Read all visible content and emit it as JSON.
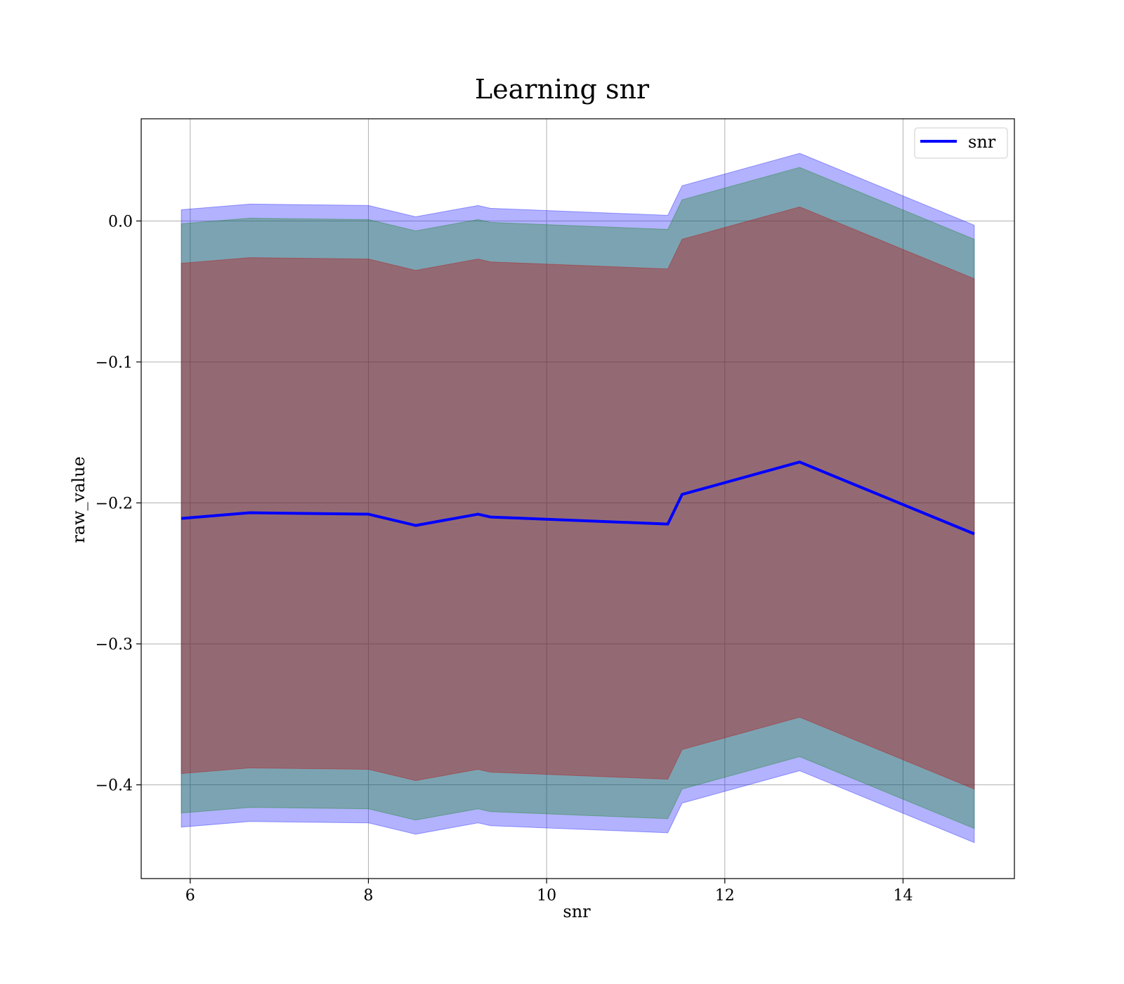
{
  "chart_data": {
    "type": "line",
    "title": "Learning snr",
    "xlabel": "snr",
    "ylabel": "raw_value",
    "xlim": [
      5.45,
      15.25
    ],
    "ylim": [
      -0.4665,
      0.0725
    ],
    "xticks": [
      6,
      8,
      10,
      12,
      14
    ],
    "xtick_labels": [
      "6",
      "8",
      "10",
      "12",
      "14"
    ],
    "yticks": [
      0.0,
      -0.1,
      -0.2,
      -0.3,
      -0.4
    ],
    "ytick_labels": [
      "0.0",
      "−0.1",
      "−0.2",
      "−0.3",
      "−0.4"
    ],
    "grid": true,
    "legend_position": "top-right",
    "x": [
      5.9,
      6.67,
      8.0,
      8.53,
      9.23,
      9.37,
      11.36,
      11.52,
      12.84,
      14.8
    ],
    "series": [
      {
        "name": "snr",
        "color": "#0000ff",
        "values": [
          -0.211,
          -0.207,
          -0.208,
          -0.216,
          -0.208,
          -0.21,
          -0.215,
          -0.194,
          -0.171,
          -0.222
        ]
      }
    ],
    "bands": [
      {
        "color": "#0000ff",
        "opacity": 0.3,
        "upper": [
          0.008,
          0.012,
          0.011,
          0.003,
          0.011,
          0.009,
          0.004,
          0.025,
          0.048,
          -0.003
        ],
        "lower": [
          -0.43,
          -0.426,
          -0.427,
          -0.435,
          -0.427,
          -0.429,
          -0.434,
          -0.413,
          -0.39,
          -0.441
        ]
      },
      {
        "color": "#008000",
        "opacity": 0.3,
        "upper": [
          -0.002,
          0.002,
          0.001,
          -0.007,
          0.001,
          -0.001,
          -0.006,
          0.015,
          0.038,
          -0.013
        ],
        "lower": [
          -0.42,
          -0.416,
          -0.417,
          -0.425,
          -0.417,
          -0.419,
          -0.424,
          -0.403,
          -0.38,
          -0.431
        ]
      },
      {
        "color": "#c00000",
        "opacity": 0.35,
        "upper": [
          -0.03,
          -0.026,
          -0.027,
          -0.035,
          -0.027,
          -0.029,
          -0.034,
          -0.013,
          0.01,
          -0.041
        ],
        "lower": [
          -0.392,
          -0.388,
          -0.389,
          -0.397,
          -0.389,
          -0.391,
          -0.396,
          -0.375,
          -0.352,
          -0.403
        ]
      }
    ]
  }
}
